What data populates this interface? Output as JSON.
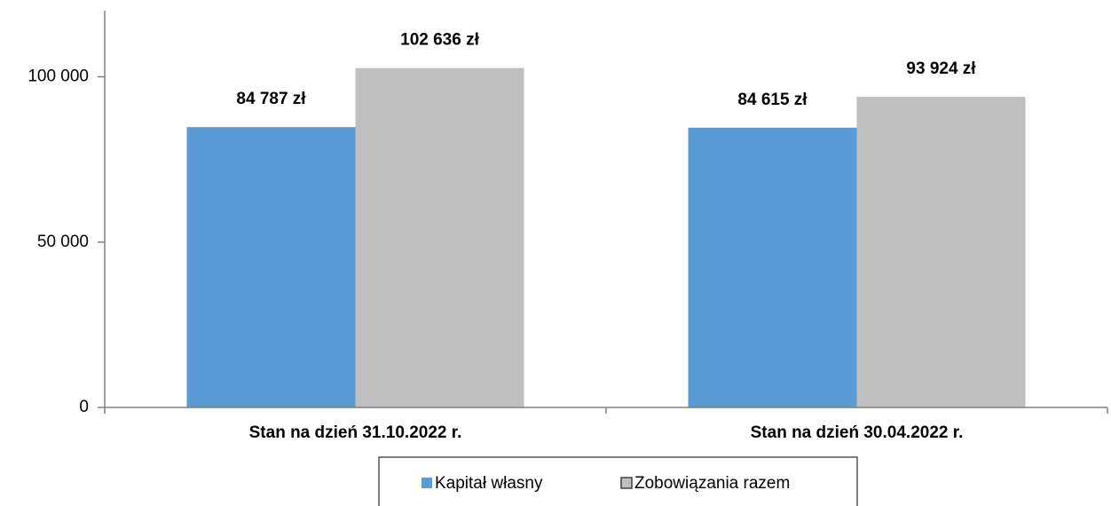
{
  "chart_data": {
    "type": "bar",
    "categories": [
      "Stan na dzień 31.10.2022 r.",
      "Stan na dzień 30.04.2022 r."
    ],
    "series": [
      {
        "name": "Kapitał własny",
        "color": "#5b9bd5",
        "values": [
          84787,
          84615
        ],
        "value_labels": [
          "84 787 zł",
          "84 615 zł"
        ]
      },
      {
        "name": "Zobowiązania razem",
        "color": "#bfbfbf",
        "values": [
          102636,
          93924
        ],
        "value_labels": [
          "102 636 zł",
          "93 924 zł"
        ]
      }
    ],
    "ylim": [
      0,
      120000
    ],
    "yticks": [
      0,
      {
        "value": 50000,
        "label": "50 000"
      },
      {
        "value": 100000,
        "label": "100 000"
      }
    ],
    "legend": "bottom"
  }
}
